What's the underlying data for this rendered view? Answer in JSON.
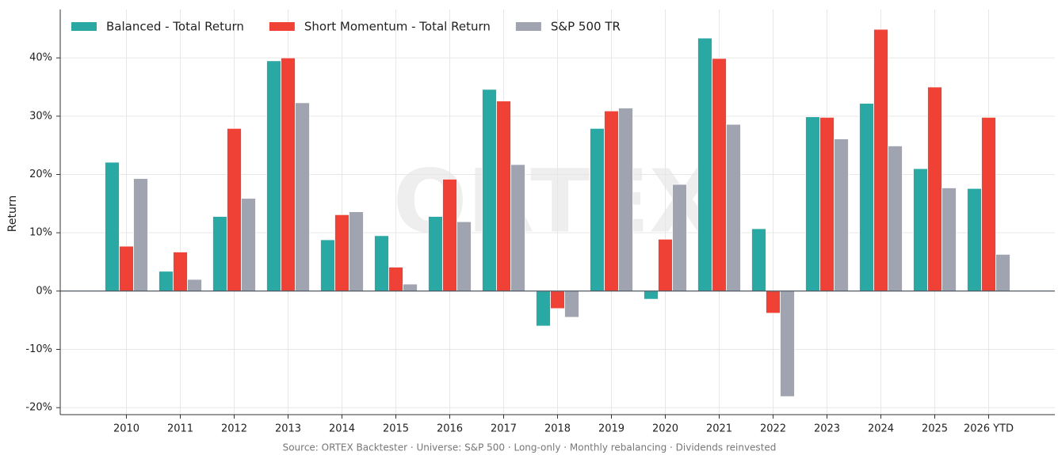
{
  "chart_data": {
    "type": "bar",
    "watermark": "ORTEX",
    "y_label": "Return",
    "source": "Source: ORTEX Backtester · Universe: S&P 500 · Long-only · Monthly rebalancing · Dividends reinvested",
    "categories": [
      "2010",
      "2011",
      "2012",
      "2013",
      "2014",
      "2015",
      "2016",
      "2017",
      "2018",
      "2019",
      "2020",
      "2021",
      "2022",
      "2023",
      "2024",
      "2025",
      "2026 YTD"
    ],
    "series": [
      {
        "name": "Balanced - Total Return",
        "color": "#2aa9a4",
        "values": [
          22.1,
          3.4,
          12.8,
          39.5,
          8.8,
          9.5,
          12.8,
          34.6,
          -6.0,
          27.9,
          -1.4,
          43.4,
          10.7,
          29.9,
          32.2,
          21.0,
          17.6
        ]
      },
      {
        "name": "Short Momentum - Total Return",
        "color": "#ef4136",
        "values": [
          7.7,
          6.7,
          27.9,
          40.0,
          13.1,
          4.1,
          19.2,
          32.6,
          -3.0,
          30.9,
          8.9,
          39.9,
          -3.8,
          29.8,
          44.9,
          35.0,
          29.8
        ]
      },
      {
        "name": "S&P 500 TR",
        "color": "#a0a4b0",
        "values": [
          19.3,
          2.0,
          15.9,
          32.3,
          13.6,
          1.2,
          11.9,
          21.7,
          -4.5,
          31.4,
          18.3,
          28.6,
          -18.1,
          26.1,
          24.9,
          17.7,
          6.3
        ]
      }
    ],
    "ylim": [
      -21.2,
      48.3
    ],
    "yticks": [
      {
        "value": -20,
        "label": "-20%"
      },
      {
        "value": -10,
        "label": "-10%"
      },
      {
        "value": 0,
        "label": "0%"
      },
      {
        "value": 10,
        "label": "10%"
      },
      {
        "value": 20,
        "label": "20%"
      },
      {
        "value": 30,
        "label": "30%"
      },
      {
        "value": 40,
        "label": "40%"
      }
    ],
    "grid": true,
    "legend": "top-left"
  }
}
